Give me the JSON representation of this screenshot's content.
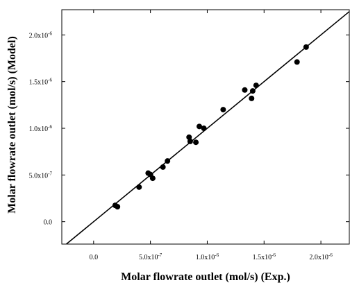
{
  "chart_data": {
    "type": "scatter",
    "title": "",
    "xlabel": "Molar flowrate outlet (mol/s) (Exp.)",
    "ylabel": "Molar flowrate outlet (mol/s) (Model)",
    "xlim": [
      -2.8e-07,
      2.25e-06
    ],
    "ylim": [
      -2.4e-07,
      2.27e-06
    ],
    "x_ticks": [
      {
        "value": 0,
        "mantissa": "0.0",
        "exponent": ""
      },
      {
        "value": 5e-07,
        "mantissa": "5.0x10",
        "exponent": "-7"
      },
      {
        "value": 1e-06,
        "mantissa": "1.0x10",
        "exponent": "-6"
      },
      {
        "value": 1.5e-06,
        "mantissa": "1.5x10",
        "exponent": "-6"
      },
      {
        "value": 2e-06,
        "mantissa": "2.0x10",
        "exponent": "-6"
      }
    ],
    "y_ticks": [
      {
        "value": 0,
        "mantissa": "0.0",
        "exponent": ""
      },
      {
        "value": 5e-07,
        "mantissa": "5.0x10",
        "exponent": "-7"
      },
      {
        "value": 1e-06,
        "mantissa": "1.0x10",
        "exponent": "-6"
      },
      {
        "value": 1.5e-06,
        "mantissa": "1.5x10",
        "exponent": "-6"
      },
      {
        "value": 2e-06,
        "mantissa": "2.0x10",
        "exponent": "-6"
      }
    ],
    "grid": false,
    "legend": "none",
    "reference_line": "y = x",
    "series": [
      {
        "color": "#000000",
        "x": [
          1.9e-07,
          2.1e-07,
          4e-07,
          4.8e-07,
          5e-07,
          5.2e-07,
          6.1e-07,
          6.5e-07,
          8.4e-07,
          8.5e-07,
          9e-07,
          9.3e-07,
          9.7e-07,
          1.14e-06,
          1.33e-06,
          1.39e-06,
          1.4e-06,
          1.43e-06,
          1.79e-06,
          1.87e-06
        ],
        "y": [
          1.75e-07,
          1.6e-07,
          3.7e-07,
          5.2e-07,
          5.05e-07,
          4.65e-07,
          5.85e-07,
          6.5e-07,
          9.05e-07,
          8.6e-07,
          8.5e-07,
          1.02e-06,
          1e-06,
          1.2e-06,
          1.41e-06,
          1.32e-06,
          1.4e-06,
          1.46e-06,
          1.71e-06,
          1.87e-06
        ]
      }
    ]
  }
}
